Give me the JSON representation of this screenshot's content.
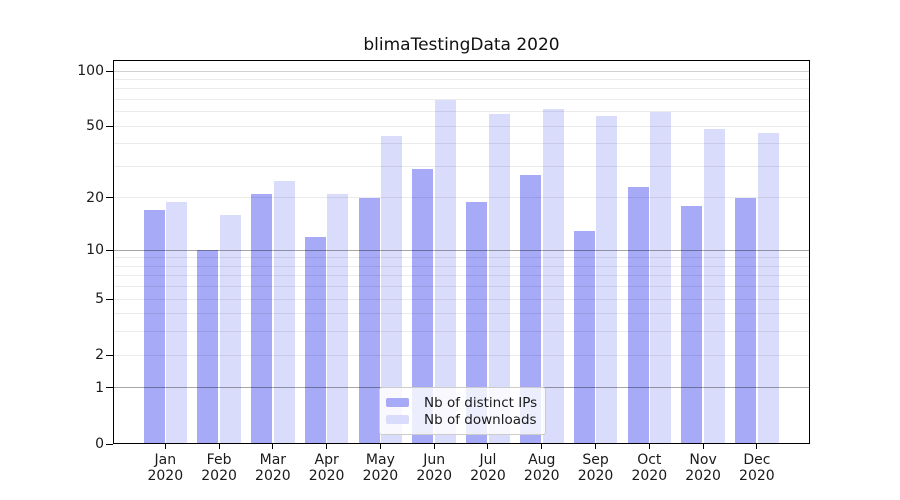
{
  "chart_data": {
    "type": "bar",
    "title": "blimaTestingData 2020",
    "categories": [
      "Jan",
      "Feb",
      "Mar",
      "Apr",
      "May",
      "Jun",
      "Jul",
      "Aug",
      "Sep",
      "Oct",
      "Nov",
      "Dec"
    ],
    "x_tick_year": "2020",
    "series": [
      {
        "name": "Nb of distinct IPs",
        "color": "#a7aaf6",
        "values": [
          17,
          10,
          21,
          12,
          20,
          29,
          19,
          27,
          13,
          23,
          18,
          20
        ]
      },
      {
        "name": "Nb of downloads",
        "color": "#dadcfb",
        "values": [
          19,
          16,
          25,
          21,
          44,
          70,
          58,
          62,
          57,
          60,
          48,
          46
        ]
      }
    ],
    "y_axis": {
      "scale": "symlog",
      "ticks": [
        0,
        1,
        2,
        5,
        10,
        20,
        50,
        100
      ],
      "tick_labels": [
        "0",
        "1",
        "2",
        "5",
        "10",
        "20",
        "50",
        "100"
      ],
      "strong_gridlines": [
        1,
        10
      ],
      "medium_gridlines": [
        100
      ],
      "minor_gridlines": [
        2,
        3,
        4,
        5,
        6,
        7,
        8,
        9,
        20,
        30,
        40,
        50,
        60,
        70,
        80,
        90
      ],
      "top_value": 115
    },
    "legend": {
      "position": "lower center",
      "entries": [
        "Nb of distinct IPs",
        "Nb of downloads"
      ]
    },
    "colors": {
      "grid_strong": "rgba(0,0,0,0.35)",
      "grid_medium": "rgba(0,0,0,0.18)",
      "grid_minor": "rgba(0,0,0,0.08)",
      "axis_line": "#000000",
      "text": "#1a1a1a"
    },
    "grid": true
  }
}
